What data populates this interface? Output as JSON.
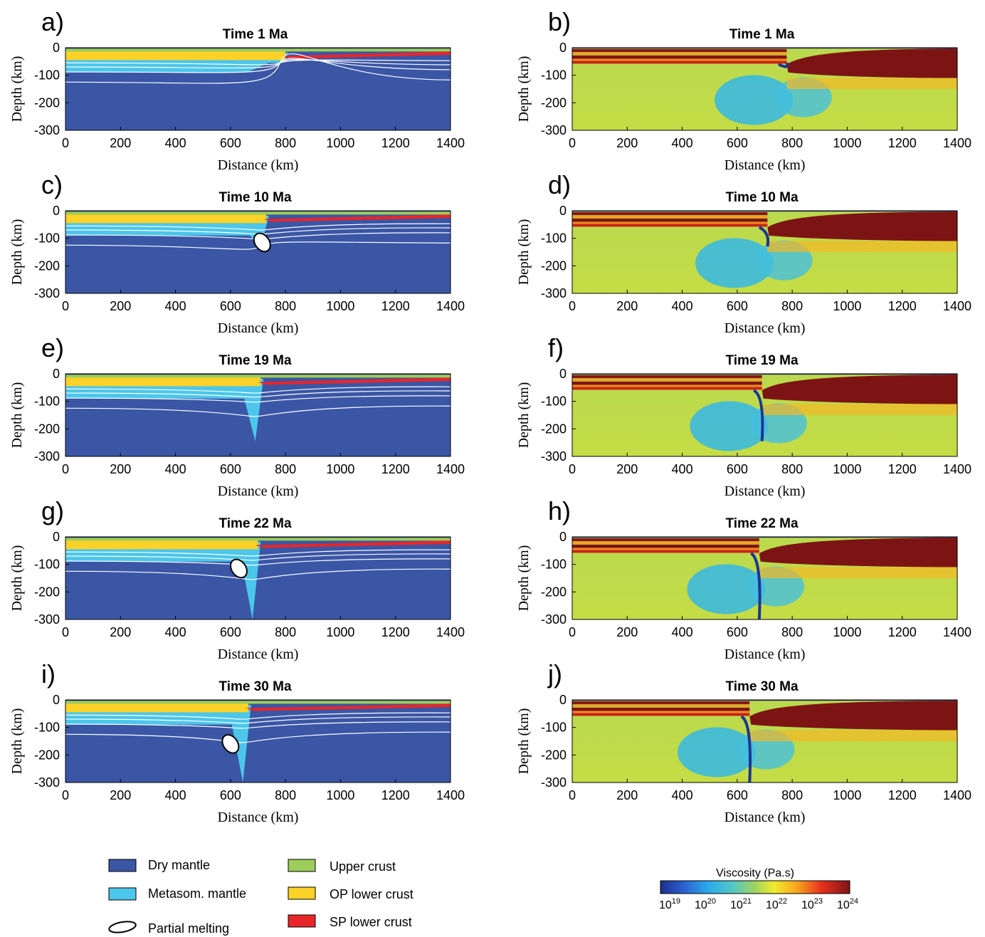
{
  "panels": [
    {
      "letter": "a)",
      "title": "Time 1 Ma",
      "kind": "composition",
      "time_ma": 1
    },
    {
      "letter": "b)",
      "title": "Time 1 Ma",
      "kind": "viscosity",
      "time_ma": 1
    },
    {
      "letter": "c)",
      "title": "Time 10 Ma",
      "kind": "composition",
      "time_ma": 10
    },
    {
      "letter": "d)",
      "title": "Time 10 Ma",
      "kind": "viscosity",
      "time_ma": 10
    },
    {
      "letter": "e)",
      "title": "Time 19 Ma",
      "kind": "composition",
      "time_ma": 19
    },
    {
      "letter": "f)",
      "title": "Time 19 Ma",
      "kind": "viscosity",
      "time_ma": 19
    },
    {
      "letter": "g)",
      "title": "Time 22 Ma",
      "kind": "composition",
      "time_ma": 22
    },
    {
      "letter": "h)",
      "title": "Time 22 Ma",
      "kind": "viscosity",
      "time_ma": 22
    },
    {
      "letter": "i)",
      "title": "Time 30 Ma",
      "kind": "composition",
      "time_ma": 30
    },
    {
      "letter": "j)",
      "title": "Time 30 Ma",
      "kind": "viscosity",
      "time_ma": 30
    }
  ],
  "axes": {
    "xlabel": "Distance (km)",
    "ylabel": "Depth (km)",
    "xticks": [
      "0",
      "200",
      "400",
      "600",
      "800",
      "1000",
      "1200",
      "1400"
    ],
    "yticks": [
      "0",
      "-100",
      "-200",
      "-300"
    ],
    "xlim": [
      0,
      1400
    ],
    "ylim": [
      -300,
      0
    ]
  },
  "legend": {
    "items": [
      {
        "label": "Dry mantle",
        "color": "#3a56a5"
      },
      {
        "label": "Metasom. mantle",
        "color": "#4cc6ea"
      },
      {
        "label": "Partial melting",
        "color": "#ffffff"
      },
      {
        "label": "Upper crust",
        "color": "#9ccc5a"
      },
      {
        "label": "OP lower crust",
        "color": "#fcd228"
      },
      {
        "label": "SP lower crust",
        "color": "#e8262a"
      }
    ]
  },
  "colorbar": {
    "title": "Viscosity (Pa.s)",
    "ticks": [
      {
        "base": "10",
        "exp": "19"
      },
      {
        "base": "10",
        "exp": "20"
      },
      {
        "base": "10",
        "exp": "21"
      },
      {
        "base": "10",
        "exp": "22"
      },
      {
        "base": "10",
        "exp": "23"
      },
      {
        "base": "10",
        "exp": "24"
      }
    ],
    "range_log10": [
      19,
      24
    ]
  },
  "chart_data": [
    {
      "type": "heatmap",
      "panel": "a",
      "title": "Time 1 Ma",
      "xlabel": "Distance (km)",
      "ylabel": "Depth (km)",
      "xlim": [
        0,
        1400
      ],
      "ylim": [
        -300,
        0
      ],
      "slab_tip": {
        "x": 780,
        "depth": -55
      },
      "melt_blob": null
    },
    {
      "type": "heatmap",
      "panel": "b",
      "title": "Time 1 Ma",
      "xlabel": "Distance (km)",
      "ylabel": "Depth (km)",
      "xlim": [
        0,
        1400
      ],
      "ylim": [
        -300,
        0
      ],
      "slab_tip": {
        "x": 780,
        "depth": -55
      }
    },
    {
      "type": "heatmap",
      "panel": "c",
      "title": "Time 10 Ma",
      "xlabel": "Distance (km)",
      "ylabel": "Depth (km)",
      "xlim": [
        0,
        1400
      ],
      "ylim": [
        -300,
        0
      ],
      "slab_tip": {
        "x": 710,
        "depth": -130
      },
      "melt_blob": {
        "x": 715,
        "depth": -115
      }
    },
    {
      "type": "heatmap",
      "panel": "d",
      "title": "Time 10 Ma",
      "xlabel": "Distance (km)",
      "ylabel": "Depth (km)",
      "xlim": [
        0,
        1400
      ],
      "ylim": [
        -300,
        0
      ],
      "slab_tip": {
        "x": 710,
        "depth": -130
      }
    },
    {
      "type": "heatmap",
      "panel": "e",
      "title": "Time 19 Ma",
      "xlabel": "Distance (km)",
      "ylabel": "Depth (km)",
      "xlim": [
        0,
        1400
      ],
      "ylim": [
        -300,
        0
      ],
      "slab_tip": {
        "x": 690,
        "depth": -245
      },
      "melt_blob": null
    },
    {
      "type": "heatmap",
      "panel": "f",
      "title": "Time 19 Ma",
      "xlabel": "Distance (km)",
      "ylabel": "Depth (km)",
      "xlim": [
        0,
        1400
      ],
      "ylim": [
        -300,
        0
      ],
      "slab_tip": {
        "x": 690,
        "depth": -245
      }
    },
    {
      "type": "heatmap",
      "panel": "g",
      "title": "Time 22 Ma",
      "xlabel": "Distance (km)",
      "ylabel": "Depth (km)",
      "xlim": [
        0,
        1400
      ],
      "ylim": [
        -300,
        0
      ],
      "slab_tip": {
        "x": 680,
        "depth": -300
      },
      "melt_blob": {
        "x": 630,
        "depth": -115
      }
    },
    {
      "type": "heatmap",
      "panel": "h",
      "title": "Time 22 Ma",
      "xlabel": "Distance (km)",
      "ylabel": "Depth (km)",
      "xlim": [
        0,
        1400
      ],
      "ylim": [
        -300,
        0
      ],
      "slab_tip": {
        "x": 680,
        "depth": -300
      }
    },
    {
      "type": "heatmap",
      "panel": "i",
      "title": "Time 30 Ma",
      "xlabel": "Distance (km)",
      "ylabel": "Depth (km)",
      "xlim": [
        0,
        1400
      ],
      "ylim": [
        -300,
        0
      ],
      "slab_tip": {
        "x": 645,
        "depth": -300
      },
      "melt_blob": {
        "x": 600,
        "depth": -160
      }
    },
    {
      "type": "heatmap",
      "panel": "j",
      "title": "Time 30 Ma",
      "xlabel": "Distance (km)",
      "ylabel": "Depth (km)",
      "xlim": [
        0,
        1400
      ],
      "ylim": [
        -300,
        0
      ],
      "slab_tip": {
        "x": 645,
        "depth": -300
      }
    }
  ]
}
